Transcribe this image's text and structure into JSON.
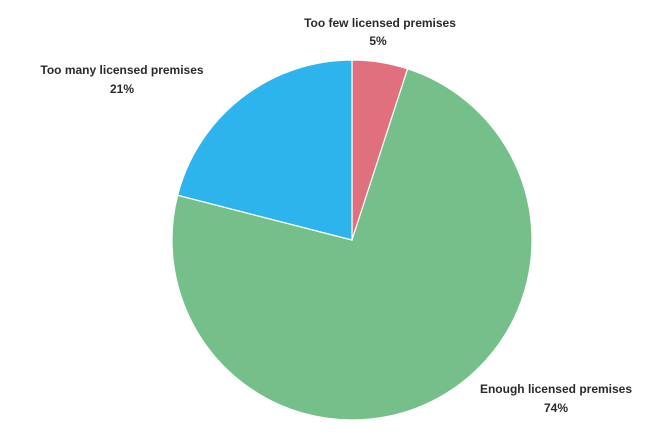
{
  "chart_data": {
    "type": "pie",
    "title": "",
    "slices": [
      {
        "label": "Too few licensed premises",
        "value": 5,
        "value_label": "5%",
        "color": "#e0707e"
      },
      {
        "label": "Enough licensed premises",
        "value": 74,
        "value_label": "74%",
        "color": "#74bf8a"
      },
      {
        "label": "Too many licensed premises",
        "value": 21,
        "value_label": "21%",
        "color": "#2eb4ec"
      }
    ],
    "start_angle_deg": 0,
    "direction": "clockwise",
    "legend": "none"
  }
}
